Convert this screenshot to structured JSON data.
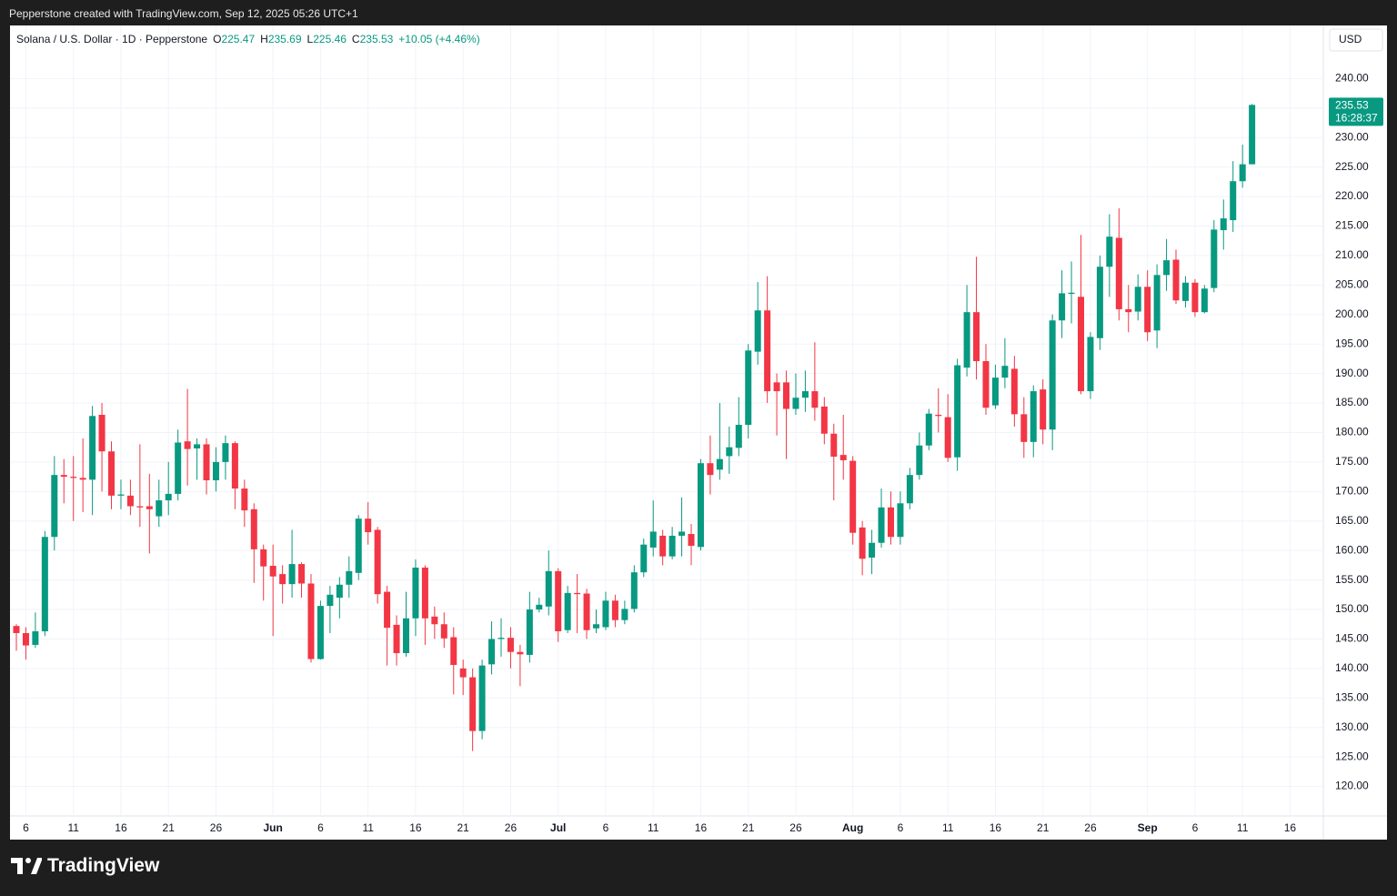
{
  "header": {
    "text": "Pepperstone created with TradingView.com, Sep 12, 2025 05:26 UTC+1"
  },
  "footer": {
    "brand": "TradingView"
  },
  "chart_data": {
    "type": "candlestick",
    "title": "Solana / U.S. Dollar · 1D · Pepperstone",
    "ohlc_labels": [
      "O",
      "H",
      "L",
      "C"
    ],
    "change": "+10.05 (+4.46%)",
    "currency": "USD",
    "countdown": "16:28:37",
    "up_color": "#089981",
    "down_color": "#f23645",
    "grid": true,
    "xlim": [
      -0.67,
      137.5
    ],
    "xticks": [
      {
        "value": 1,
        "label": "6"
      },
      {
        "value": 6,
        "label": "11"
      },
      {
        "value": 11,
        "label": "16"
      },
      {
        "value": 16,
        "label": "21"
      },
      {
        "value": 21,
        "label": "26"
      },
      {
        "value": 27,
        "label": "Jun"
      },
      {
        "value": 32,
        "label": "6"
      },
      {
        "value": 37,
        "label": "11"
      },
      {
        "value": 42,
        "label": "16"
      },
      {
        "value": 47,
        "label": "21"
      },
      {
        "value": 52,
        "label": "26"
      },
      {
        "value": 57,
        "label": "Jul"
      },
      {
        "value": 62,
        "label": "6"
      },
      {
        "value": 67,
        "label": "11"
      },
      {
        "value": 72,
        "label": "16"
      },
      {
        "value": 77,
        "label": "21"
      },
      {
        "value": 82,
        "label": "26"
      },
      {
        "value": 88,
        "label": "Aug"
      },
      {
        "value": 93,
        "label": "6"
      },
      {
        "value": 98,
        "label": "11"
      },
      {
        "value": 103,
        "label": "16"
      },
      {
        "value": 108,
        "label": "21"
      },
      {
        "value": 113,
        "label": "26"
      },
      {
        "value": 119,
        "label": "Sep"
      },
      {
        "value": 124,
        "label": "6"
      },
      {
        "value": 129,
        "label": "11"
      },
      {
        "value": 134,
        "label": "16"
      }
    ],
    "ylim": [
      115,
      249
    ],
    "yticks": [
      {
        "value": 120,
        "label": "120.00"
      },
      {
        "value": 125,
        "label": "125.00"
      },
      {
        "value": 130,
        "label": "130.00"
      },
      {
        "value": 135,
        "label": "135.00"
      },
      {
        "value": 140,
        "label": "140.00"
      },
      {
        "value": 145,
        "label": "145.00"
      },
      {
        "value": 150,
        "label": "150.00"
      },
      {
        "value": 155,
        "label": "155.00"
      },
      {
        "value": 160,
        "label": "160.00"
      },
      {
        "value": 165,
        "label": "165.00"
      },
      {
        "value": 170,
        "label": "170.00"
      },
      {
        "value": 175,
        "label": "175.00"
      },
      {
        "value": 180,
        "label": "180.00"
      },
      {
        "value": 185,
        "label": "185.00"
      },
      {
        "value": 190,
        "label": "190.00"
      },
      {
        "value": 195,
        "label": "195.00"
      },
      {
        "value": 200,
        "label": "200.00"
      },
      {
        "value": 205,
        "label": "205.00"
      },
      {
        "value": 210,
        "label": "210.00"
      },
      {
        "value": 215,
        "label": "215.00"
      },
      {
        "value": 220,
        "label": "220.00"
      },
      {
        "value": 225,
        "label": "225.00"
      },
      {
        "value": 230,
        "label": "230.00"
      },
      {
        "value": 235,
        "label": "235.00"
      },
      {
        "value": 240,
        "label": "240.00"
      }
    ],
    "open": [
      147.2,
      146,
      144,
      146.3,
      162.3,
      172.8,
      172.5,
      172.3,
      172,
      183,
      176.8,
      169.3,
      169.3,
      167.5,
      167.5,
      165.8,
      168.5,
      169.6,
      178.5,
      177.3,
      178,
      171.9,
      175,
      178.2,
      170.5,
      167,
      160.2,
      157.4,
      156,
      154.3,
      157.7,
      154.4,
      141.6,
      150.6,
      152,
      154.2,
      156.2,
      165.4,
      163.5,
      153,
      147.4,
      142.6,
      148.5,
      157.1,
      148.8,
      147.5,
      145.3,
      140,
      138.5,
      129.4,
      140.7,
      145,
      145.2,
      142.8,
      142.3,
      150,
      150.5,
      156.5,
      146.5,
      152.8,
      152.7,
      146.8,
      147,
      151.5,
      148.2,
      150.1,
      156.3,
      160.5,
      162.5,
      159,
      162.5,
      162.8,
      160.6,
      174.8,
      173.7,
      176,
      177.4,
      181.3,
      193.7,
      200.7,
      188.5,
      188.5,
      184,
      185.9,
      187,
      184.4,
      179.8,
      176.2,
      175.2,
      163.9,
      158.8,
      161.3,
      167.3,
      162.3,
      168,
      172.8,
      177.8,
      183,
      182.6,
      175.8,
      191,
      200.4,
      192.1,
      184.6,
      189.3,
      190.8,
      183.1,
      178.4,
      187.3,
      180.5,
      199,
      203.5,
      203,
      187,
      196,
      208.1,
      213,
      200.9,
      200.5,
      204.7,
      197.3,
      206.7,
      209.3,
      202.3,
      205.4,
      200.4,
      204.5,
      214.3,
      216,
      222.6,
      225.47
    ],
    "high": [
      147.5,
      147,
      149.5,
      163.3,
      176,
      175.5,
      176,
      179,
      184.5,
      185,
      178.5,
      172,
      172,
      178,
      173,
      172,
      175,
      180.5,
      187.4,
      179,
      179,
      177.5,
      179.5,
      178.5,
      172,
      168,
      161,
      161,
      157.5,
      163.5,
      158,
      156,
      151.5,
      154,
      155.5,
      159,
      166,
      168.2,
      164,
      154,
      149,
      153,
      158.5,
      157.5,
      150.5,
      149.5,
      147,
      141.5,
      140,
      141.5,
      148,
      148.5,
      147,
      144,
      153,
      152,
      160,
      157,
      154,
      156,
      153.5,
      150,
      153,
      152.5,
      151.5,
      157.5,
      162,
      168.5,
      163.5,
      164,
      169,
      164.5,
      175.5,
      179.5,
      185,
      181,
      186,
      195,
      205.5,
      206.5,
      190,
      190.5,
      190,
      190.5,
      195.3,
      186,
      181.5,
      183,
      176,
      165,
      163.5,
      170.5,
      170,
      170,
      174,
      180,
      184,
      187.5,
      186.5,
      192.5,
      205,
      209.8,
      195,
      191.5,
      196,
      193,
      186,
      188,
      189,
      200,
      207.5,
      209,
      213.5,
      197,
      210,
      217,
      218,
      205,
      206.8,
      207.5,
      208.5,
      212.8,
      211,
      206.5,
      206,
      205,
      216,
      219.5,
      226,
      228.8,
      235.69
    ],
    "low": [
      143,
      141.5,
      143.5,
      145.5,
      160,
      168,
      165,
      166.5,
      166,
      170,
      167,
      167,
      166,
      164,
      159.5,
      164,
      166,
      168.5,
      171,
      172,
      169.5,
      170,
      172,
      167,
      164,
      154.5,
      151.5,
      145.5,
      151,
      152,
      152,
      141,
      141.5,
      146,
      148.5,
      152,
      155,
      161,
      151,
      140.5,
      140.5,
      142,
      145.5,
      144,
      145,
      143.5,
      135.6,
      135.5,
      126,
      128,
      139,
      142,
      140,
      137,
      141,
      149.5,
      149,
      144.5,
      146,
      146,
      145,
      146,
      146.5,
      147,
      147.5,
      149.5,
      155.5,
      159,
      157.5,
      158.5,
      159,
      157.5,
      160,
      169.5,
      172,
      173,
      176,
      179,
      191.5,
      185,
      179.5,
      175.5,
      183,
      183.5,
      182,
      178,
      168.5,
      172,
      161,
      155.8,
      156,
      160.5,
      161,
      161,
      167,
      172,
      177,
      180,
      175,
      173.5,
      189.5,
      189,
      183,
      184,
      187.5,
      181,
      175.7,
      175.8,
      178,
      177,
      196,
      198.5,
      186.5,
      185.7,
      194,
      203,
      199,
      197,
      199,
      195.5,
      194.3,
      204,
      201.8,
      201.2,
      199.6,
      200.2,
      203.8,
      211,
      214,
      221.5,
      225.46
    ],
    "close": [
      146,
      143.9,
      146.3,
      162.3,
      172.8,
      172.5,
      172.3,
      172,
      182.8,
      176.8,
      169.3,
      169.5,
      167.5,
      167.3,
      167,
      168.5,
      169.6,
      178.3,
      177.2,
      178,
      171.9,
      175,
      178.2,
      170.5,
      166.8,
      160.2,
      157.3,
      155.6,
      154.3,
      157.7,
      154.4,
      141.6,
      150.6,
      152.5,
      154.2,
      156.5,
      165.4,
      163.1,
      152.6,
      146.9,
      142.6,
      148.5,
      157.1,
      148.5,
      147.5,
      145.1,
      140.6,
      138.5,
      129.4,
      140.5,
      145,
      145.2,
      142.8,
      142.4,
      150,
      150.8,
      156.5,
      146.3,
      152.8,
      152.6,
      146.5,
      147.5,
      151.5,
      148.2,
      150.1,
      156.3,
      161,
      163.2,
      159,
      162.5,
      163.2,
      160.8,
      174.8,
      172.8,
      175.5,
      177.5,
      181.3,
      193.9,
      200.7,
      187,
      187,
      184,
      185.9,
      187,
      184.2,
      179.8,
      175.9,
      175.3,
      163,
      158.6,
      161.3,
      167.3,
      162.3,
      168,
      172.8,
      177.8,
      183.2,
      182.8,
      175.7,
      191.4,
      200.4,
      192.1,
      184.2,
      189.3,
      191.3,
      183.1,
      178.4,
      187,
      180.5,
      199,
      203.6,
      203.7,
      187,
      196.2,
      208.1,
      213.2,
      200.9,
      200.4,
      204.7,
      197,
      206.7,
      209.2,
      202.4,
      205.4,
      200.4,
      204.4,
      214.4,
      216.3,
      222.6,
      225.47,
      235.53
    ]
  }
}
